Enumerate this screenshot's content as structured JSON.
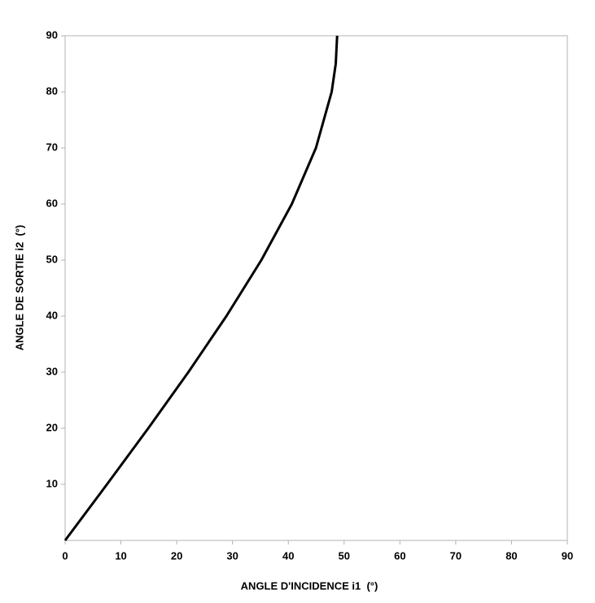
{
  "chart_data": {
    "type": "line",
    "x_label": "ANGLE D'INCIDENCE i1  (°)",
    "y_label": "ANGLE DE SORTIE i2  (°)",
    "series": [
      {
        "color": "#000000",
        "x": [
          0,
          7.5,
          14.9,
          22.08,
          28.9,
          35.17,
          40.63,
          44.95,
          47.77,
          48.5,
          48.75
        ],
        "values": [
          0,
          10,
          20,
          30,
          40,
          50,
          60,
          70,
          80,
          85,
          90
        ]
      }
    ],
    "xlim": [
      0,
      90
    ],
    "xticks": [
      0,
      10,
      20,
      30,
      40,
      50,
      60,
      70,
      80,
      90
    ],
    "ylim": [
      0,
      90
    ],
    "yticks": [
      10,
      20,
      30,
      40,
      50,
      60,
      70,
      80,
      90
    ]
  }
}
